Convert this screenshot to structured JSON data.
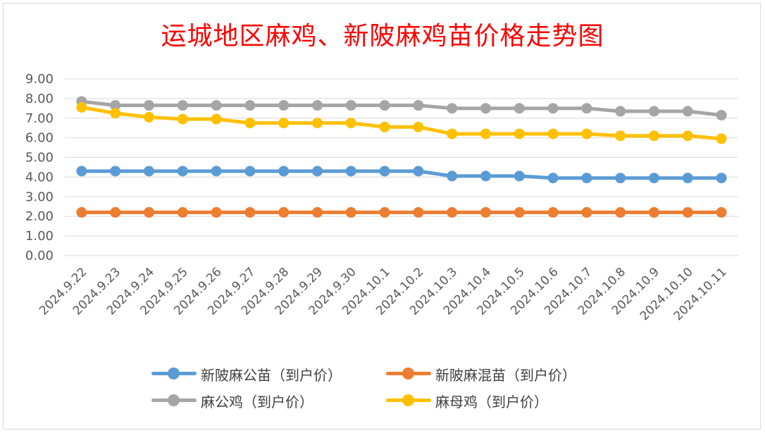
{
  "chart_data": {
    "type": "line",
    "title": "运城地区麻鸡、新陂麻鸡苗价格走势图",
    "categories": [
      "2024.9.22",
      "2024.9.23",
      "2024.9.24",
      "2024.9.25",
      "2024.9.26",
      "2024.9.27",
      "2024.9.28",
      "2024.9.29",
      "2024.9.30",
      "2024.10.1",
      "2024.10.2",
      "2024.10.3",
      "2024.10.4",
      "2024.10.5",
      "2024.10.6",
      "2024.10.7",
      "2024.10.8",
      "2024.10.9",
      "2024.10.10",
      "2024.10.11"
    ],
    "yticks": [
      "0.00",
      "1.00",
      "2.00",
      "3.00",
      "4.00",
      "5.00",
      "6.00",
      "7.00",
      "8.00",
      "9.00"
    ],
    "ylim": [
      0,
      9
    ],
    "grid": true,
    "legend_position": "bottom",
    "series": [
      {
        "name": "新陂麻公苗（到户价）",
        "color": "#5b9bd5",
        "values": [
          4.3,
          4.3,
          4.3,
          4.3,
          4.3,
          4.3,
          4.3,
          4.3,
          4.3,
          4.3,
          4.3,
          4.05,
          4.05,
          4.05,
          3.95,
          3.95,
          3.95,
          3.95,
          3.95,
          3.95
        ]
      },
      {
        "name": "新陂麻混苗（到户价）",
        "color": "#ed7d31",
        "values": [
          2.2,
          2.2,
          2.2,
          2.2,
          2.2,
          2.2,
          2.2,
          2.2,
          2.2,
          2.2,
          2.2,
          2.2,
          2.2,
          2.2,
          2.2,
          2.2,
          2.2,
          2.2,
          2.2,
          2.2
        ]
      },
      {
        "name": "麻公鸡（到户价）",
        "color": "#a5a5a5",
        "values": [
          7.85,
          7.65,
          7.65,
          7.65,
          7.65,
          7.65,
          7.65,
          7.65,
          7.65,
          7.65,
          7.65,
          7.5,
          7.5,
          7.5,
          7.5,
          7.5,
          7.35,
          7.35,
          7.35,
          7.15
        ]
      },
      {
        "name": "麻母鸡（到户价）",
        "color": "#ffc000",
        "values": [
          7.55,
          7.25,
          7.05,
          6.95,
          6.95,
          6.75,
          6.75,
          6.75,
          6.75,
          6.55,
          6.55,
          6.2,
          6.2,
          6.2,
          6.2,
          6.2,
          6.1,
          6.1,
          6.1,
          5.95
        ]
      }
    ]
  }
}
